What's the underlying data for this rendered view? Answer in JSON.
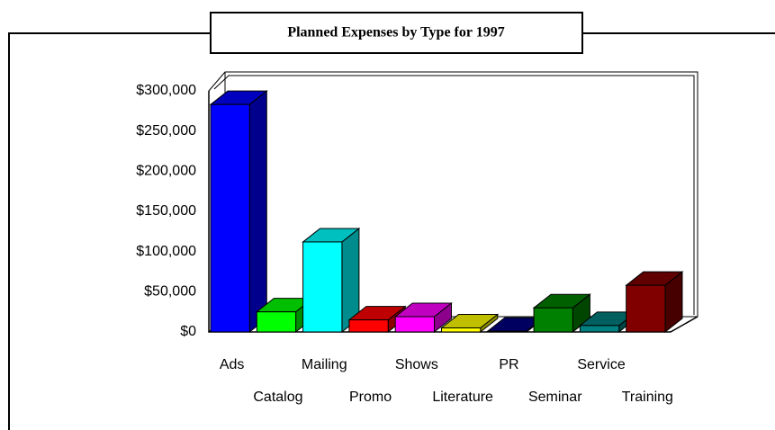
{
  "chart_data": {
    "type": "bar3d",
    "title": "Planned Expenses by Type for 1997",
    "categories": [
      "Ads",
      "Catalog",
      "Mailing",
      "Promo",
      "Shows",
      "Literature",
      "PR",
      "Seminar",
      "Service",
      "Training"
    ],
    "values": [
      283000,
      25000,
      112000,
      15000,
      19000,
      5000,
      1000,
      30000,
      8000,
      58000
    ],
    "colors": [
      "#0000ff",
      "#00ff00",
      "#00ffff",
      "#ff0000",
      "#ff00ff",
      "#ffff00",
      "#000080",
      "#008000",
      "#008080",
      "#800000"
    ],
    "ylim": [
      0,
      300000
    ],
    "yticks": [
      {
        "value": 0,
        "label": "$0"
      },
      {
        "value": 50000,
        "label": "$50,000"
      },
      {
        "value": 100000,
        "label": "$100,000"
      },
      {
        "value": 150000,
        "label": "$150,000"
      },
      {
        "value": 200000,
        "label": "$200,000"
      },
      {
        "value": 250000,
        "label": "$250,000"
      },
      {
        "value": 300000,
        "label": "$300,000"
      }
    ],
    "grid": false
  }
}
